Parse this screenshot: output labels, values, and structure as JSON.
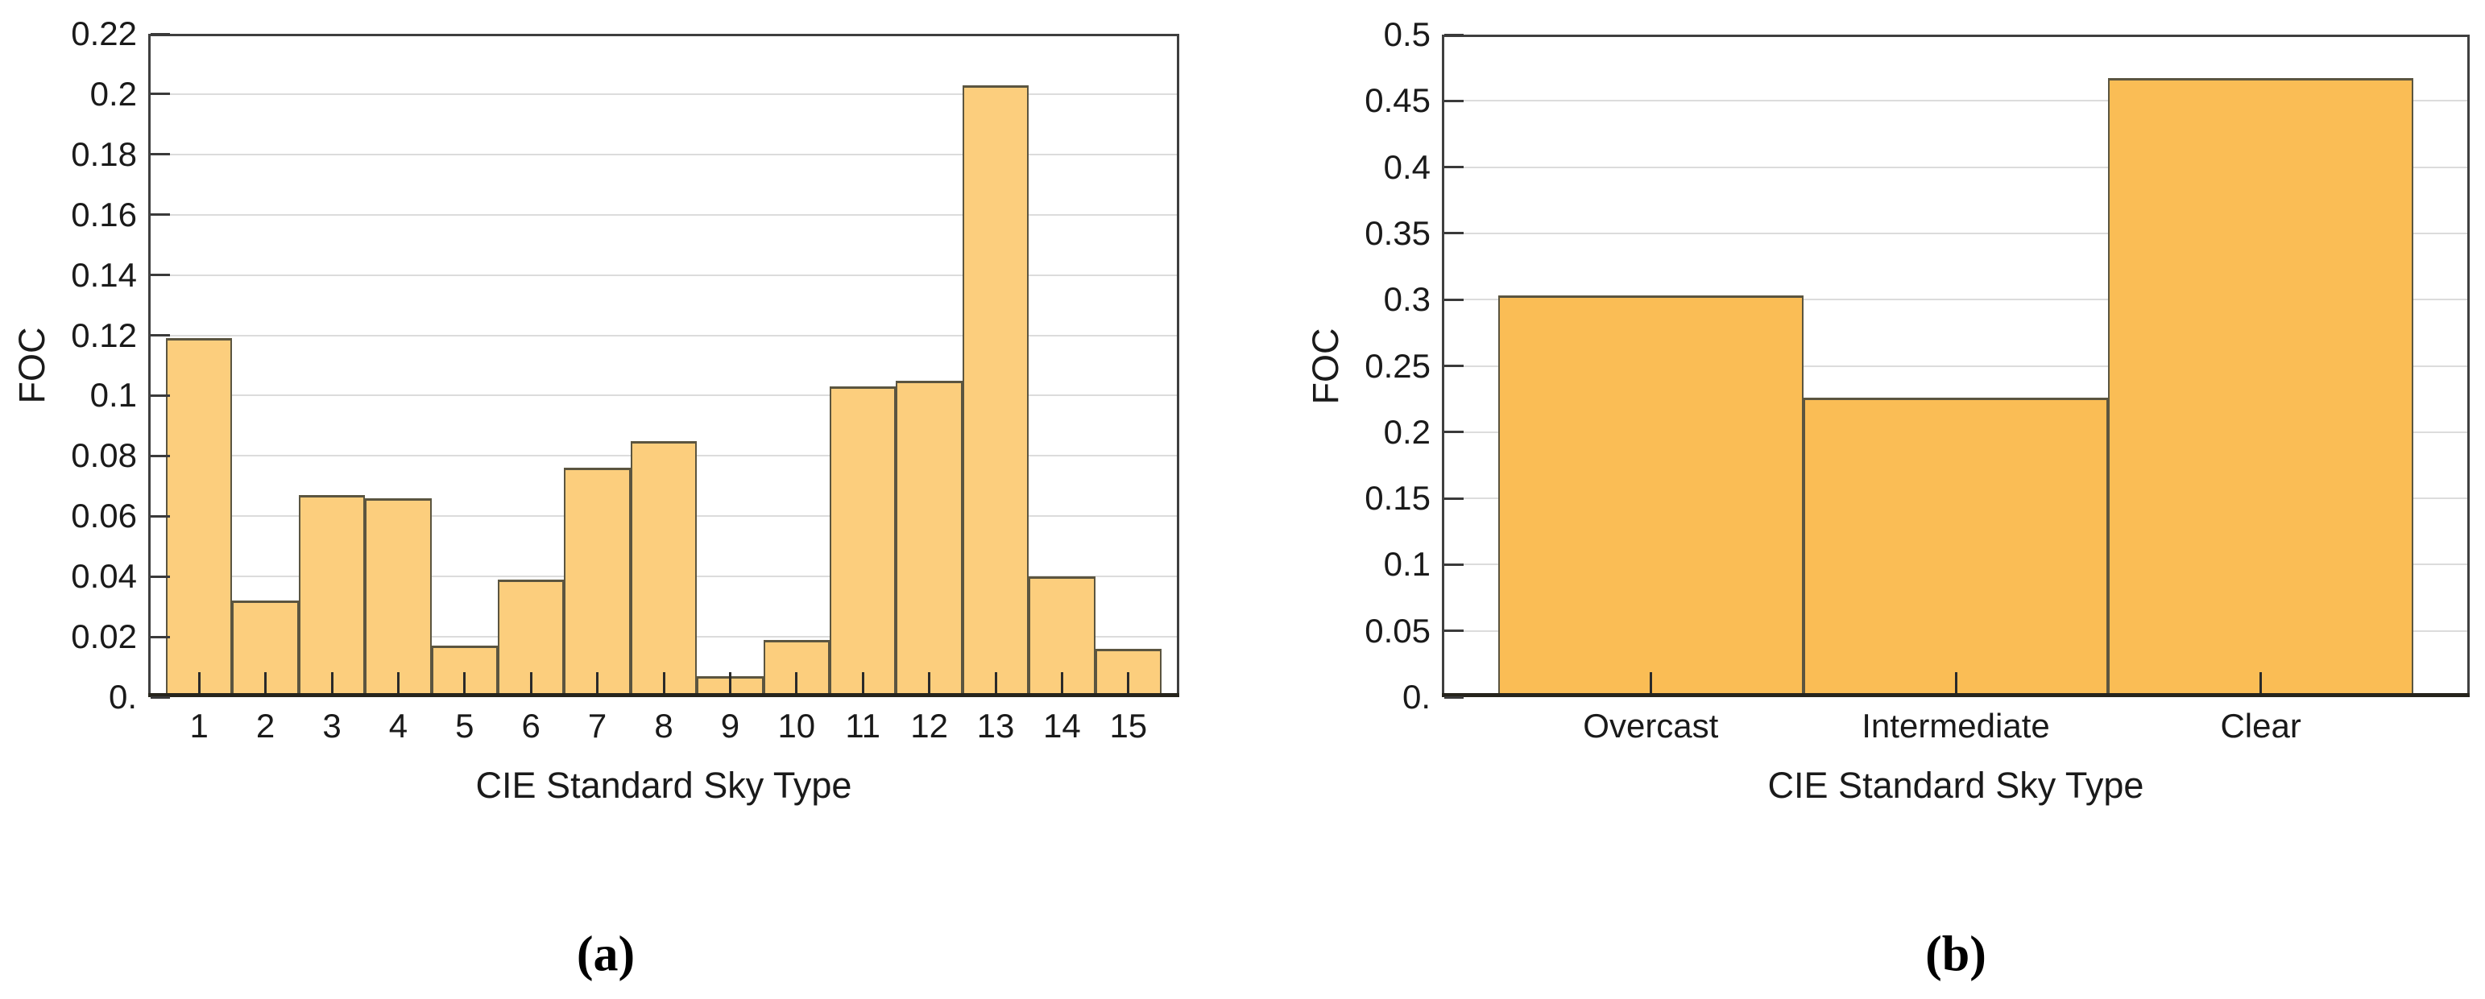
{
  "figure": {
    "background": "#ffffff",
    "captions": {
      "a": "(a)",
      "b": "(b)"
    }
  },
  "colors": {
    "panel_a_bar_fill": "#FCCE7D",
    "panel_b_bar_fill": "#FABD55",
    "bar_border": "#5B5540",
    "axis_frame": "#3F3F3F",
    "axis_bottom": "#26241C",
    "gridline": "#DCDCDC",
    "text": "#1A1A1A"
  },
  "chart_data": [
    {
      "panel": "a",
      "type": "bar",
      "title": "",
      "xlabel": "CIE Standard Sky Type",
      "ylabel": "FOC",
      "caption": "(a)",
      "categories": [
        "1",
        "2",
        "3",
        "4",
        "5",
        "6",
        "7",
        "8",
        "9",
        "10",
        "11",
        "12",
        "13",
        "14",
        "15"
      ],
      "values": [
        0.119,
        0.032,
        0.067,
        0.066,
        0.017,
        0.039,
        0.076,
        0.085,
        0.007,
        0.019,
        0.103,
        0.105,
        0.203,
        0.04,
        0.016
      ],
      "ylim": [
        0,
        0.22
      ],
      "ytick_values": [
        0,
        0.02,
        0.04,
        0.06,
        0.08,
        0.1,
        0.12,
        0.14,
        0.16,
        0.18,
        0.2,
        0.22
      ],
      "ytick_labels": [
        "0.",
        "0.02",
        "0.04",
        "0.06",
        "0.08",
        "0.1",
        "0.12",
        "0.14",
        "0.16",
        "0.18",
        "0.2",
        "0.22"
      ],
      "grid": true,
      "legend": null,
      "bar_fill": "#FCCE7D"
    },
    {
      "panel": "b",
      "type": "bar",
      "title": "",
      "xlabel": "CIE Standard Sky Type",
      "ylabel": "FOC",
      "caption": "(b)",
      "categories": [
        "Overcast",
        "Intermediate",
        "Clear"
      ],
      "values": [
        0.303,
        0.226,
        0.467
      ],
      "ylim": [
        0,
        0.5
      ],
      "ytick_values": [
        0,
        0.05,
        0.1,
        0.15,
        0.2,
        0.25,
        0.3,
        0.35,
        0.4,
        0.45,
        0.5
      ],
      "ytick_labels": [
        "0.",
        "0.05",
        "0.1",
        "0.15",
        "0.2",
        "0.25",
        "0.3",
        "0.35",
        "0.4",
        "0.45",
        "0.5"
      ],
      "grid": true,
      "legend": null,
      "bar_fill": "#FABD55"
    }
  ]
}
